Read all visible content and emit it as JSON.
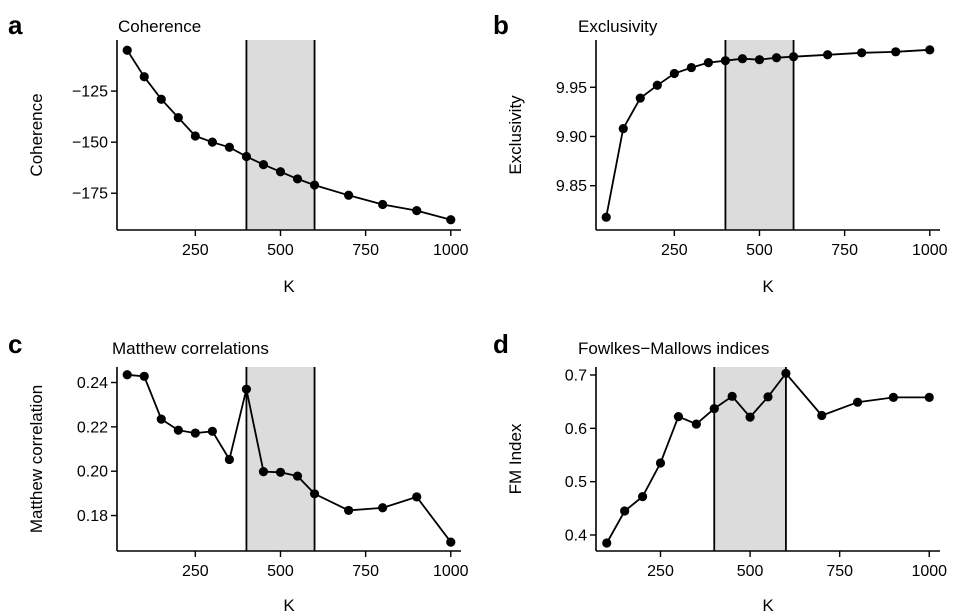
{
  "chart_data": [
    {
      "panel": "a",
      "type": "line",
      "title": "Coherence",
      "xlabel": "K",
      "ylabel": "Coherence",
      "x": [
        50,
        100,
        150,
        200,
        250,
        300,
        350,
        400,
        450,
        500,
        550,
        600,
        700,
        800,
        900,
        1000
      ],
      "y": [
        -105,
        -118,
        -129,
        -138,
        -147,
        -150,
        -152.5,
        -157,
        -161,
        -164.5,
        -168,
        -171,
        -176,
        -180.5,
        -183.5,
        -188
      ],
      "xlim": [
        20,
        1030
      ],
      "ylim": [
        -193,
        -100
      ],
      "xticks": [
        250,
        500,
        750,
        1000
      ],
      "xtick_labels": [
        "250",
        "500",
        "750",
        "1000"
      ],
      "yticks": [
        -175,
        -150,
        -125
      ],
      "ytick_labels": [
        "−175",
        "−150",
        "−125"
      ],
      "shaded_range": [
        400,
        600
      ]
    },
    {
      "panel": "b",
      "type": "line",
      "title": "Exclusivity",
      "xlabel": "K",
      "ylabel": "Exclusivity",
      "x": [
        50,
        100,
        150,
        200,
        250,
        300,
        350,
        400,
        450,
        500,
        550,
        600,
        700,
        800,
        900,
        1000
      ],
      "y": [
        9.818,
        9.908,
        9.939,
        9.952,
        9.964,
        9.97,
        9.975,
        9.977,
        9.979,
        9.978,
        9.98,
        9.981,
        9.983,
        9.985,
        9.986,
        9.988
      ],
      "xlim": [
        20,
        1030
      ],
      "ylim": [
        9.805,
        9.998
      ],
      "xticks": [
        250,
        500,
        750,
        1000
      ],
      "xtick_labels": [
        "250",
        "500",
        "750",
        "1000"
      ],
      "yticks": [
        9.85,
        9.9,
        9.95
      ],
      "ytick_labels": [
        "9.85",
        "9.90",
        "9.95"
      ],
      "shaded_range": [
        400,
        600
      ]
    },
    {
      "panel": "c",
      "type": "line",
      "title": "Matthew correlations",
      "xlabel": "K",
      "ylabel": "Matthew correlation",
      "x": [
        50,
        100,
        150,
        200,
        250,
        300,
        350,
        400,
        450,
        500,
        550,
        600,
        700,
        800,
        900,
        1000
      ],
      "y": [
        0.2435,
        0.2428,
        0.2235,
        0.2185,
        0.2172,
        0.218,
        0.2053,
        0.237,
        0.1998,
        0.1995,
        0.1978,
        0.1898,
        0.1823,
        0.1835,
        0.1884,
        0.168
      ],
      "xlim": [
        20,
        1030
      ],
      "ylim": [
        0.164,
        0.247
      ],
      "xticks": [
        250,
        500,
        750,
        1000
      ],
      "xtick_labels": [
        "250",
        "500",
        "750",
        "1000"
      ],
      "yticks": [
        0.18,
        0.2,
        0.22,
        0.24
      ],
      "ytick_labels": [
        "0.18",
        "0.20",
        "0.22",
        "0.24"
      ],
      "shaded_range": [
        400,
        600
      ]
    },
    {
      "panel": "d",
      "type": "line",
      "title": "Fowlkes−Mallows indices",
      "xlabel": "K",
      "ylabel": "FM Index",
      "x": [
        100,
        150,
        200,
        250,
        300,
        350,
        400,
        450,
        500,
        550,
        600,
        700,
        800,
        900,
        1000
      ],
      "y": [
        0.385,
        0.445,
        0.472,
        0.535,
        0.622,
        0.608,
        0.637,
        0.66,
        0.621,
        0.659,
        0.703,
        0.624,
        0.649,
        0.658,
        0.658
      ],
      "xlim": [
        70,
        1030
      ],
      "ylim": [
        0.37,
        0.715
      ],
      "xticks": [
        250,
        500,
        750,
        1000
      ],
      "xtick_labels": [
        "250",
        "500",
        "750",
        "1000"
      ],
      "yticks": [
        0.4,
        0.5,
        0.6,
        0.7
      ],
      "ytick_labels": [
        "0.4",
        "0.5",
        "0.6",
        "0.7"
      ],
      "shaded_range": [
        400,
        600
      ]
    }
  ]
}
